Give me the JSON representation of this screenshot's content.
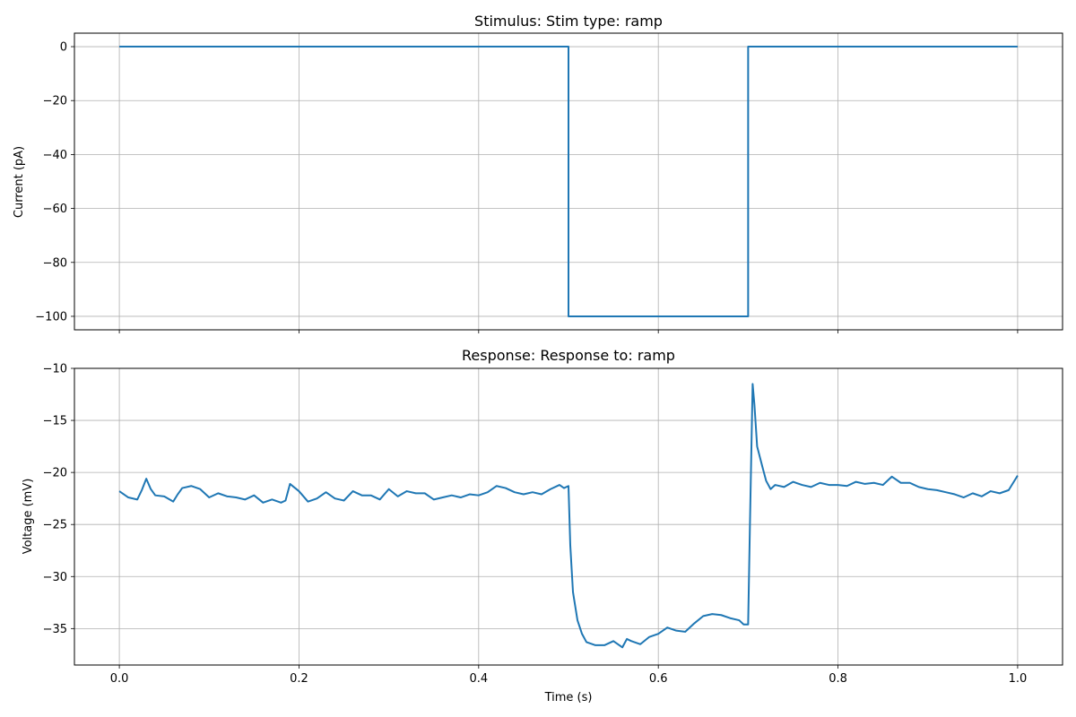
{
  "chart_data": [
    {
      "type": "line",
      "title": "Stimulus: Stim type: ramp",
      "xlabel": "",
      "ylabel": "Current (pA)",
      "xlim": [
        -0.05,
        1.05
      ],
      "ylim": [
        -105,
        5
      ],
      "xticks": [
        0.0,
        0.2,
        0.4,
        0.6,
        0.8,
        1.0
      ],
      "xtick_labels_visible": false,
      "yticks": [
        0,
        -20,
        -40,
        -60,
        -80,
        -100
      ],
      "ytick_labels": [
        "0",
        "−20",
        "−40",
        "−60",
        "−80",
        "−100"
      ],
      "grid": true,
      "color": "#1f77b4",
      "series": [
        {
          "x": [
            0.0,
            0.5,
            0.5,
            0.7,
            0.7,
            1.0
          ],
          "y": [
            0,
            0,
            -100,
            -100,
            0,
            0
          ]
        }
      ]
    },
    {
      "type": "line",
      "title": "Response: Response to: ramp",
      "xlabel": "Time (s)",
      "ylabel": "Voltage (mV)",
      "xlim": [
        -0.05,
        1.05
      ],
      "ylim": [
        -38.5,
        -10
      ],
      "xticks": [
        0.0,
        0.2,
        0.4,
        0.6,
        0.8,
        1.0
      ],
      "xtick_labels": [
        "0.0",
        "0.2",
        "0.4",
        "0.6",
        "0.8",
        "1.0"
      ],
      "yticks": [
        -10,
        -15,
        -20,
        -25,
        -30,
        -35
      ],
      "ytick_labels": [
        "−10",
        "−15",
        "−20",
        "−25",
        "−30",
        "−35"
      ],
      "grid": true,
      "color": "#1f77b4",
      "series": [
        {
          "x": [
            0.0,
            0.01,
            0.02,
            0.025,
            0.03,
            0.035,
            0.04,
            0.05,
            0.06,
            0.065,
            0.07,
            0.08,
            0.09,
            0.1,
            0.11,
            0.12,
            0.13,
            0.14,
            0.15,
            0.16,
            0.17,
            0.18,
            0.185,
            0.19,
            0.2,
            0.21,
            0.22,
            0.23,
            0.24,
            0.25,
            0.26,
            0.27,
            0.28,
            0.29,
            0.3,
            0.31,
            0.32,
            0.33,
            0.34,
            0.35,
            0.36,
            0.37,
            0.38,
            0.39,
            0.4,
            0.41,
            0.42,
            0.43,
            0.44,
            0.45,
            0.46,
            0.47,
            0.48,
            0.49,
            0.495,
            0.5,
            0.502,
            0.505,
            0.51,
            0.515,
            0.52,
            0.53,
            0.54,
            0.55,
            0.56,
            0.565,
            0.57,
            0.58,
            0.59,
            0.6,
            0.61,
            0.62,
            0.63,
            0.64,
            0.65,
            0.66,
            0.67,
            0.68,
            0.69,
            0.695,
            0.7,
            0.702,
            0.705,
            0.707,
            0.71,
            0.713,
            0.716,
            0.72,
            0.725,
            0.73,
            0.74,
            0.75,
            0.76,
            0.77,
            0.78,
            0.79,
            0.8,
            0.81,
            0.82,
            0.83,
            0.84,
            0.85,
            0.86,
            0.87,
            0.88,
            0.89,
            0.9,
            0.91,
            0.92,
            0.93,
            0.94,
            0.95,
            0.96,
            0.97,
            0.98,
            0.99,
            1.0
          ],
          "y": [
            -21.8,
            -22.4,
            -22.6,
            -21.7,
            -20.6,
            -21.6,
            -22.2,
            -22.3,
            -22.8,
            -22.1,
            -21.5,
            -21.3,
            -21.6,
            -22.4,
            -22.0,
            -22.3,
            -22.4,
            -22.6,
            -22.2,
            -22.9,
            -22.6,
            -22.9,
            -22.7,
            -21.1,
            -21.8,
            -22.8,
            -22.5,
            -21.9,
            -22.5,
            -22.7,
            -21.8,
            -22.2,
            -22.2,
            -22.6,
            -21.6,
            -22.3,
            -21.8,
            -22.0,
            -22.0,
            -22.6,
            -22.4,
            -22.2,
            -22.4,
            -22.1,
            -22.2,
            -21.9,
            -21.3,
            -21.5,
            -21.9,
            -22.1,
            -21.9,
            -22.1,
            -21.6,
            -21.2,
            -21.5,
            -21.3,
            -27.0,
            -31.5,
            -34.2,
            -35.5,
            -36.3,
            -36.6,
            -36.6,
            -36.2,
            -36.8,
            -36.0,
            -36.2,
            -36.5,
            -35.8,
            -35.5,
            -34.9,
            -35.2,
            -35.3,
            -34.5,
            -33.8,
            -33.6,
            -33.7,
            -34.0,
            -34.2,
            -34.6,
            -34.6,
            -25.0,
            -11.5,
            -13.5,
            -17.5,
            -18.5,
            -19.5,
            -20.8,
            -21.6,
            -21.2,
            -21.4,
            -20.9,
            -21.2,
            -21.4,
            -21.0,
            -21.2,
            -21.2,
            -21.3,
            -20.9,
            -21.1,
            -21.0,
            -21.2,
            -20.4,
            -21.0,
            -21.0,
            -21.4,
            -21.6,
            -21.7,
            -21.9,
            -22.1,
            -22.4,
            -22.0,
            -22.3,
            -21.8,
            -22.0,
            -21.7,
            -20.3
          ]
        }
      ]
    }
  ]
}
